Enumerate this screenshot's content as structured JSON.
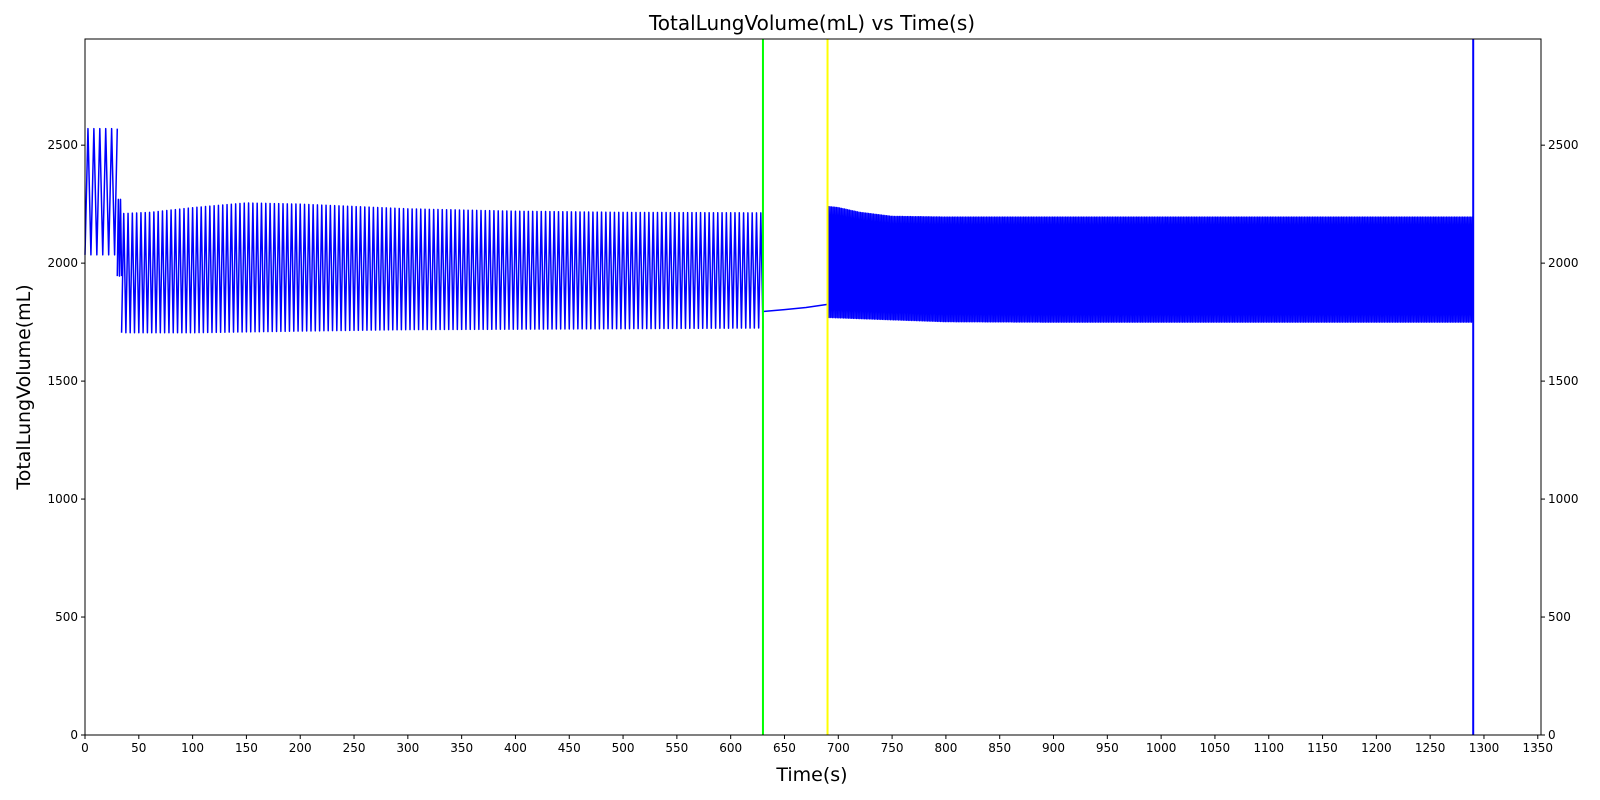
{
  "chart_data": {
    "type": "line",
    "title": "TotalLungVolume(mL) vs Time(s)",
    "xlabel": "Time(s)",
    "ylabel": "TotalLungVolume(mL)",
    "xlim": [
      0,
      1353
    ],
    "ylim": [
      0,
      2950
    ],
    "x_ticks": [
      0,
      50,
      100,
      150,
      200,
      250,
      300,
      350,
      400,
      450,
      500,
      550,
      600,
      650,
      700,
      750,
      800,
      850,
      900,
      950,
      1000,
      1050,
      1100,
      1150,
      1200,
      1250,
      1300,
      1350
    ],
    "y_ticks": [
      0,
      500,
      1000,
      1500,
      2000,
      2500
    ],
    "grid": false,
    "series": [
      {
        "color": "#0000ff",
        "segments": [
          {
            "t_start": 0,
            "t_end": 30,
            "period": 5.5,
            "max": [
              [
                0,
                2570
              ],
              [
                30,
                2570
              ]
            ],
            "min": [
              [
                0,
                2035
              ],
              [
                30,
                2035
              ]
            ]
          },
          {
            "t_start": 30,
            "t_end": 34,
            "period": 2,
            "max": [
              [
                30,
                2270
              ],
              [
                34,
                2270
              ]
            ],
            "min": [
              [
                30,
                1945
              ],
              [
                34,
                1945
              ]
            ]
          },
          {
            "t_start": 34,
            "t_end": 630,
            "period": 4,
            "max": [
              [
                34,
                2210
              ],
              [
                60,
                2215
              ],
              [
                100,
                2235
              ],
              [
                150,
                2255
              ],
              [
                200,
                2250
              ],
              [
                300,
                2230
              ],
              [
                400,
                2220
              ],
              [
                500,
                2215
              ],
              [
                630,
                2213
              ]
            ],
            "min": [
              [
                34,
                1705
              ],
              [
                100,
                1705
              ],
              [
                200,
                1712
              ],
              [
                300,
                1718
              ],
              [
                400,
                1720
              ],
              [
                500,
                1722
              ],
              [
                630,
                1725
              ]
            ]
          },
          {
            "t_start": 630,
            "t_end": 690,
            "period": 0,
            "line": [
              [
                630,
                1795
              ],
              [
                650,
                1803
              ],
              [
                670,
                1812
              ],
              [
                690,
                1825
              ]
            ]
          },
          {
            "t_start": 690,
            "t_end": 1290,
            "period": 1.5,
            "max": [
              [
                690,
                2240
              ],
              [
                700,
                2235
              ],
              [
                720,
                2215
              ],
              [
                750,
                2198
              ],
              [
                800,
                2195
              ],
              [
                900,
                2195
              ],
              [
                1290,
                2195
              ]
            ],
            "min": [
              [
                690,
                1770
              ],
              [
                750,
                1760
              ],
              [
                800,
                1752
              ],
              [
                900,
                1750
              ],
              [
                1290,
                1750
              ]
            ]
          }
        ]
      }
    ],
    "vertical_lines": [
      {
        "x": 630,
        "color": "#00ff00"
      },
      {
        "x": 690,
        "color": "#ffff00"
      },
      {
        "x": 1290,
        "color": "#0000ff"
      }
    ]
  }
}
